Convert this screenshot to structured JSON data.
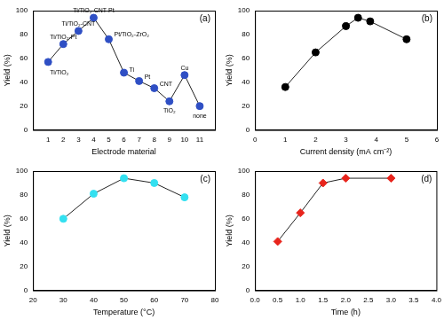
{
  "chart_data": [
    {
      "type": "line",
      "title": "(a)",
      "x_label": "Electrode material",
      "y_label": "Yield (%)",
      "x": [
        1,
        2,
        3,
        4,
        5,
        6,
        7,
        8,
        9,
        10,
        11
      ],
      "values": [
        57,
        72,
        83,
        94,
        76,
        48,
        41,
        35,
        24,
        46,
        20
      ],
      "annotations": [
        "Ti/TiO₂",
        "Ti/TiO₂-Pt",
        "Ti/TiO₂-CNT",
        "Ti/TiO₂-CNT-Pt",
        "Pt/TiO₂-ZrO₂",
        "Ti",
        "Pt",
        "CNT",
        "TiO₂",
        "Cu",
        "none"
      ],
      "color": "#2f4fc4",
      "marker": "circle",
      "xlim": [
        0,
        12
      ],
      "xticks": [
        1,
        2,
        3,
        4,
        5,
        6,
        7,
        8,
        9,
        10,
        11
      ],
      "ylim": [
        0,
        100
      ],
      "yticks": [
        0,
        20,
        40,
        60,
        80,
        100
      ],
      "grid": false
    },
    {
      "type": "line",
      "title": "(b)",
      "x_label": "Current density (mA cm⁻²)",
      "y_label": "Yield (%)",
      "x": [
        1,
        2,
        3,
        3.4,
        3.8,
        5
      ],
      "values": [
        36,
        65,
        87,
        94,
        91,
        76
      ],
      "color": "#000000",
      "marker": "circle",
      "xlim": [
        0,
        6
      ],
      "xticks": [
        0,
        1,
        2,
        3,
        4,
        5,
        6
      ],
      "ylim": [
        0,
        100
      ],
      "yticks": [
        0,
        20,
        40,
        60,
        80,
        100
      ],
      "grid": false
    },
    {
      "type": "line",
      "title": "(c)",
      "x_label": "Temperature (°C)",
      "y_label": "Yield (%)",
      "x": [
        30,
        40,
        50,
        60,
        70
      ],
      "values": [
        60,
        81,
        94,
        90,
        78
      ],
      "color": "#33e0f0",
      "marker": "circle",
      "xlim": [
        20,
        80
      ],
      "xticks": [
        20,
        30,
        40,
        50,
        60,
        70,
        80
      ],
      "ylim": [
        0,
        100
      ],
      "yticks": [
        0,
        20,
        40,
        60,
        80,
        100
      ],
      "grid": false
    },
    {
      "type": "line",
      "title": "(d)",
      "x_label": "Time (h)",
      "y_label": "Yield (%)",
      "x": [
        0.5,
        1,
        1.5,
        2,
        3
      ],
      "values": [
        41,
        65,
        90,
        94,
        94
      ],
      "color": "#e8241c",
      "marker": "diamond",
      "xlim": [
        0,
        4
      ],
      "xticks": [
        {
          "value": 0,
          "label": "0.0"
        },
        {
          "value": 0.5,
          "label": "0.5"
        },
        {
          "value": 1,
          "label": "1.0"
        },
        {
          "value": 1.5,
          "label": "1.5"
        },
        {
          "value": 2,
          "label": "2.0"
        },
        {
          "value": 2.5,
          "label": "2.5"
        },
        {
          "value": 3,
          "label": "3.0"
        },
        {
          "value": 3.5,
          "label": "3.5"
        },
        {
          "value": 4,
          "label": "4.0"
        }
      ],
      "ylim": [
        0,
        100
      ],
      "yticks": [
        0,
        20,
        40,
        60,
        80,
        100
      ],
      "grid": false
    }
  ]
}
